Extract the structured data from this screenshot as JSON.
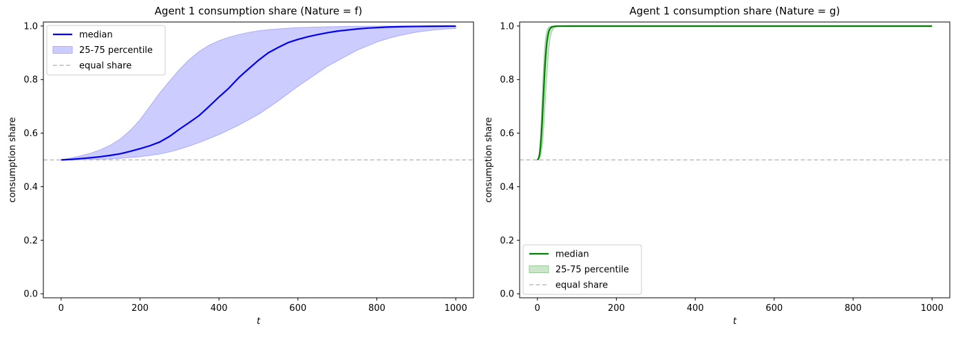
{
  "chart_data": [
    {
      "type": "line",
      "title": "Agent 1 consumption share (Nature = f)",
      "xlabel": "t",
      "ylabel": "consumption share",
      "xlim": [
        -45,
        1045
      ],
      "ylim": [
        -0.015,
        1.015
      ],
      "xticks": [
        0,
        200,
        400,
        600,
        800,
        1000
      ],
      "yticks": [
        0.0,
        0.2,
        0.4,
        0.6,
        0.8,
        1.0
      ],
      "grid": false,
      "legend_position": "upper left",
      "colors": {
        "median": "#0000ee",
        "band": "#ccccff",
        "band_edge": "#aaaaff",
        "reference": "#bbbbbb"
      },
      "x": [
        0,
        25,
        50,
        75,
        100,
        125,
        150,
        175,
        200,
        225,
        250,
        275,
        300,
        325,
        350,
        375,
        400,
        425,
        450,
        475,
        500,
        525,
        550,
        575,
        600,
        625,
        650,
        675,
        700,
        725,
        750,
        775,
        800,
        825,
        850,
        875,
        900,
        925,
        950,
        975,
        1000
      ],
      "series": [
        {
          "name": "median",
          "kind": "line",
          "values": [
            0.5,
            0.502,
            0.505,
            0.508,
            0.512,
            0.517,
            0.523,
            0.532,
            0.542,
            0.553,
            0.567,
            0.588,
            0.615,
            0.64,
            0.666,
            0.7,
            0.735,
            0.768,
            0.807,
            0.84,
            0.872,
            0.9,
            0.92,
            0.938,
            0.95,
            0.96,
            0.968,
            0.975,
            0.981,
            0.985,
            0.989,
            0.992,
            0.994,
            0.996,
            0.997,
            0.998,
            0.9985,
            0.999,
            0.9993,
            0.9996,
            0.9998
          ]
        },
        {
          "name": "25-75 percentile",
          "kind": "band",
          "lower": [
            0.5,
            0.5,
            0.501,
            0.502,
            0.503,
            0.504,
            0.506,
            0.509,
            0.512,
            0.517,
            0.522,
            0.53,
            0.54,
            0.552,
            0.565,
            0.58,
            0.595,
            0.612,
            0.63,
            0.65,
            0.67,
            0.695,
            0.72,
            0.748,
            0.775,
            0.8,
            0.825,
            0.85,
            0.87,
            0.89,
            0.91,
            0.925,
            0.94,
            0.952,
            0.962,
            0.97,
            0.977,
            0.982,
            0.986,
            0.989,
            0.991
          ],
          "upper": [
            0.5,
            0.507,
            0.515,
            0.525,
            0.538,
            0.555,
            0.578,
            0.61,
            0.65,
            0.7,
            0.75,
            0.795,
            0.838,
            0.875,
            0.905,
            0.928,
            0.945,
            0.958,
            0.968,
            0.976,
            0.982,
            0.986,
            0.989,
            0.992,
            0.994,
            0.995,
            0.996,
            0.997,
            0.998,
            0.9985,
            0.999,
            0.9993,
            0.9995,
            0.9997,
            0.9998,
            0.9999,
            0.9999,
            0.9999,
            1.0,
            1.0,
            1.0
          ]
        },
        {
          "name": "equal share",
          "kind": "hline",
          "y": 0.5
        }
      ]
    },
    {
      "type": "line",
      "title": "Agent 1 consumption share (Nature = g)",
      "xlabel": "t",
      "ylabel": "consumption share",
      "xlim": [
        -45,
        1045
      ],
      "ylim": [
        -0.015,
        1.015
      ],
      "xticks": [
        0,
        200,
        400,
        600,
        800,
        1000
      ],
      "yticks": [
        0.0,
        0.2,
        0.4,
        0.6,
        0.8,
        1.0
      ],
      "grid": false,
      "legend_position": "lower left",
      "colors": {
        "median": "#008000",
        "band": "#cce6cc",
        "band_edge": "#99cc99",
        "reference": "#bbbbbb"
      },
      "x": [
        0,
        2,
        4,
        6,
        8,
        10,
        12,
        14,
        16,
        18,
        20,
        22,
        24,
        26,
        28,
        30,
        33,
        36,
        40,
        45,
        50,
        60,
        80,
        100,
        200,
        400,
        600,
        800,
        1000
      ],
      "series": [
        {
          "name": "median",
          "kind": "line",
          "values": [
            0.5,
            0.503,
            0.51,
            0.525,
            0.55,
            0.59,
            0.64,
            0.7,
            0.76,
            0.82,
            0.87,
            0.91,
            0.94,
            0.96,
            0.975,
            0.985,
            0.992,
            0.996,
            0.998,
            0.999,
            0.9995,
            0.9998,
            1.0,
            1.0,
            1.0,
            1.0,
            1.0,
            1.0,
            1.0
          ]
        },
        {
          "name": "25-75 percentile",
          "kind": "band",
          "lower": [
            0.5,
            0.501,
            0.503,
            0.508,
            0.515,
            0.53,
            0.55,
            0.58,
            0.62,
            0.67,
            0.72,
            0.77,
            0.82,
            0.86,
            0.9,
            0.93,
            0.96,
            0.978,
            0.99,
            0.996,
            0.998,
            0.9995,
            1.0,
            1.0,
            1.0,
            1.0,
            1.0,
            1.0,
            1.0
          ],
          "upper": [
            0.5,
            0.505,
            0.52,
            0.55,
            0.6,
            0.66,
            0.73,
            0.8,
            0.86,
            0.91,
            0.945,
            0.968,
            0.982,
            0.99,
            0.995,
            0.997,
            0.999,
            0.9995,
            1.0,
            1.0,
            1.0,
            1.0,
            1.0,
            1.0,
            1.0,
            1.0,
            1.0,
            1.0,
            1.0
          ]
        },
        {
          "name": "equal share",
          "kind": "hline",
          "y": 0.5
        }
      ]
    }
  ]
}
